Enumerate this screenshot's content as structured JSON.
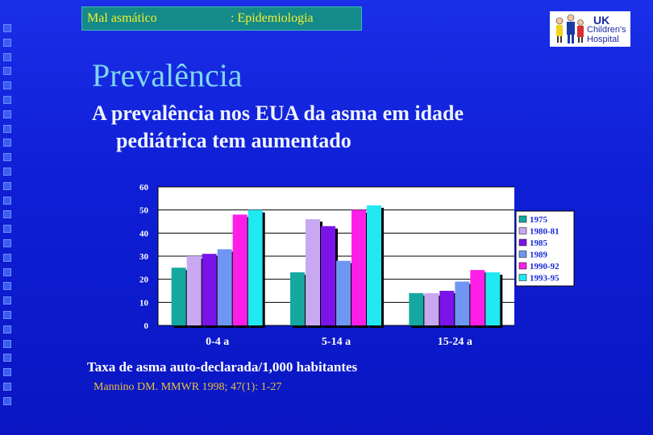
{
  "header": {
    "topic": "Mal asmático",
    "section": ": Epidemiologia"
  },
  "logo": {
    "line1": "UK",
    "line2": "Children's",
    "line3": "Hospital"
  },
  "slide": {
    "title": "Prevalência",
    "subtitle_line1": "A prevalência nos EUA da asma em idade",
    "subtitle_line2": "pediátrica tem aumentado",
    "caption": "Taxa de asma auto-declarada/1,000 habitantes",
    "citation": "Mannino DM. MMWR 1998; 47(1): 1-27"
  },
  "chart_data": {
    "type": "bar",
    "categories": [
      "0-4 a",
      "5-14 a",
      "15-24 a"
    ],
    "ylim": [
      0,
      60
    ],
    "yticks": [
      0,
      10,
      20,
      30,
      40,
      50,
      60
    ],
    "legend_position": "right",
    "grid": true,
    "series": [
      {
        "name": "1975",
        "color": "#14a8a0",
        "values": [
          25,
          23,
          14
        ]
      },
      {
        "name": "1980-81",
        "color": "#c8a8f0",
        "values": [
          30,
          46,
          14
        ]
      },
      {
        "name": "1985",
        "color": "#7a14e8",
        "values": [
          31,
          43,
          15
        ]
      },
      {
        "name": "1989",
        "color": "#6f96f2",
        "values": [
          33,
          28,
          19
        ]
      },
      {
        "name": "1990-92",
        "color": "#ff1ee8",
        "values": [
          48,
          50,
          24
        ]
      },
      {
        "name": "1993-95",
        "color": "#22e8f2",
        "values": [
          50,
          52,
          23
        ]
      }
    ]
  }
}
